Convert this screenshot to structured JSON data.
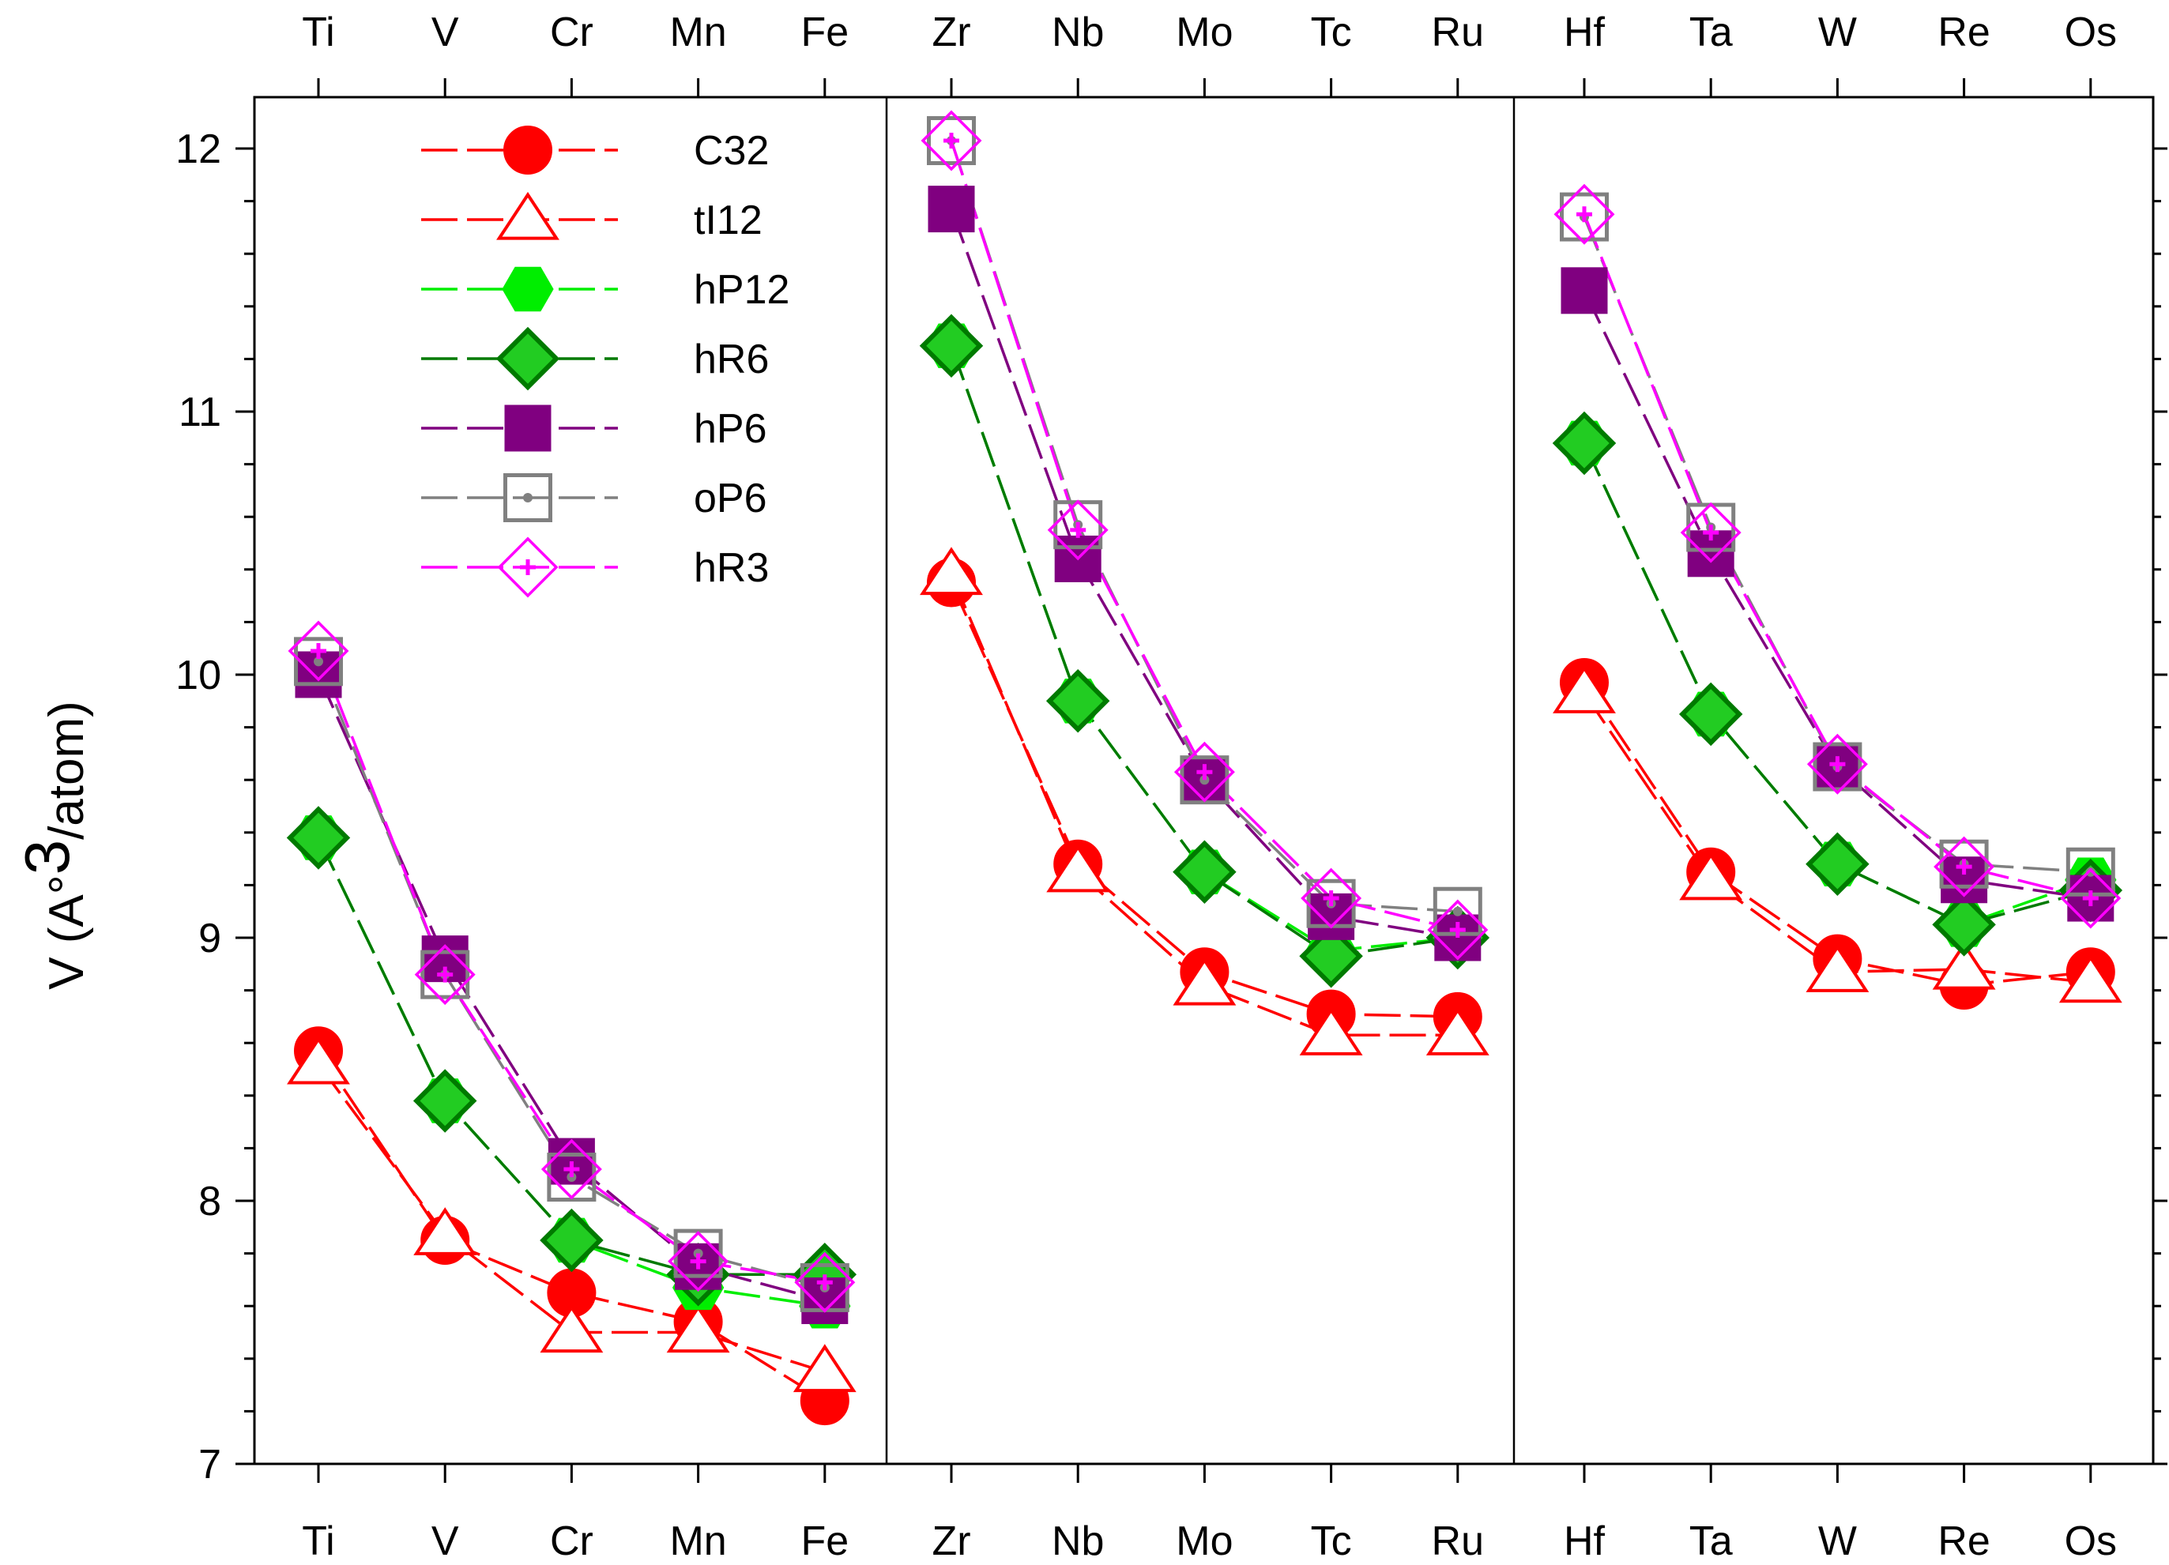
{
  "chart_data": {
    "type": "line",
    "title": "",
    "ylabel": {
      "prefix": "V (A",
      "degree": "°",
      "power": "3",
      "suffix": "/atom)"
    },
    "ylim": [
      7,
      12.2
    ],
    "yticks": [
      "7",
      "8",
      "9",
      "10",
      "11",
      "12"
    ],
    "groups": [
      [
        "Ti",
        "V",
        "Cr",
        "Mn",
        "Fe"
      ],
      [
        "Zr",
        "Nb",
        "Mo",
        "Tc",
        "Ru"
      ],
      [
        "Hf",
        "Ta",
        "W",
        "Re",
        "Os"
      ]
    ],
    "categories": [
      "Ti",
      "V",
      "Cr",
      "Mn",
      "Fe",
      "Zr",
      "Nb",
      "Mo",
      "Tc",
      "Ru",
      "Hf",
      "Ta",
      "W",
      "Re",
      "Os"
    ],
    "series": [
      {
        "name": "C32",
        "color": "#ff0000",
        "marker": "circle",
        "filled": true,
        "values": [
          8.57,
          7.85,
          7.65,
          7.54,
          7.24,
          10.35,
          9.28,
          8.87,
          8.71,
          8.7,
          9.97,
          9.25,
          8.92,
          8.82,
          8.87
        ]
      },
      {
        "name": "tI12",
        "color": "#ff0000",
        "marker": "triangle",
        "filled": false,
        "values": [
          8.52,
          7.87,
          7.5,
          7.5,
          7.35,
          10.38,
          9.25,
          8.82,
          8.63,
          8.63,
          9.93,
          9.22,
          8.87,
          8.88,
          8.83
        ]
      },
      {
        "name": "hP12",
        "color": "#00ee00",
        "marker": "hexagon",
        "filled": true,
        "values": [
          9.38,
          8.38,
          7.85,
          7.67,
          7.6,
          11.25,
          9.9,
          9.25,
          8.95,
          9.0,
          10.88,
          9.85,
          9.28,
          9.05,
          9.22
        ]
      },
      {
        "name": "hR6",
        "color": "#007a00",
        "marker": "diamond",
        "filled": false,
        "values": [
          9.38,
          8.38,
          7.85,
          7.72,
          7.72,
          11.25,
          9.9,
          9.25,
          8.93,
          9.0,
          10.88,
          9.85,
          9.28,
          9.05,
          9.18
        ]
      },
      {
        "name": "hP6",
        "color": "#800080",
        "marker": "square",
        "filled": true,
        "values": [
          10.0,
          8.92,
          8.15,
          7.75,
          7.62,
          11.77,
          10.44,
          9.6,
          9.08,
          9.0,
          11.46,
          10.46,
          9.65,
          9.22,
          9.15
        ]
      },
      {
        "name": "oP6",
        "color": "#808080",
        "marker": "square-dot",
        "filled": false,
        "values": [
          10.05,
          8.86,
          8.09,
          7.8,
          7.67,
          12.03,
          10.57,
          9.6,
          9.13,
          9.1,
          11.74,
          10.56,
          9.65,
          9.28,
          9.25
        ]
      },
      {
        "name": "hR3",
        "color": "#ff00ff",
        "marker": "diamond-cross",
        "filled": false,
        "values": [
          10.09,
          8.86,
          8.12,
          7.77,
          7.69,
          12.03,
          10.55,
          9.63,
          9.15,
          9.03,
          11.75,
          10.54,
          9.66,
          9.27,
          9.15
        ]
      }
    ]
  }
}
